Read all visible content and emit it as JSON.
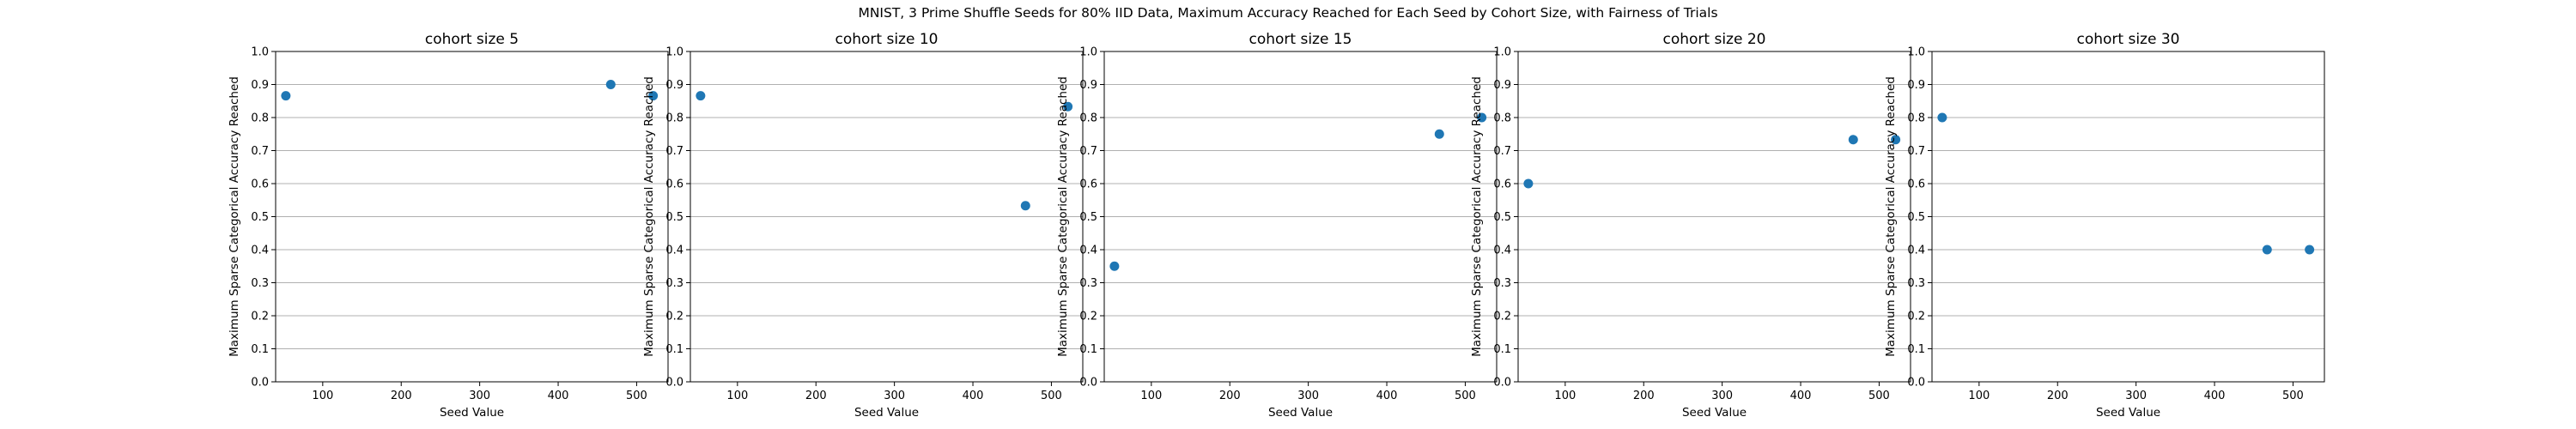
{
  "figure": {
    "title": "MNIST, 3 Prime Shuffle Seeds for 80% IID Data, Maximum Accuracy Reached for Each Seed by Cohort Size, with Fairness of Trials"
  },
  "colors": {
    "marker": "#1f77b4",
    "grid": "#b0b0b0",
    "axis": "#000000"
  },
  "chart_data": [
    {
      "type": "scatter",
      "title": "cohort size 5",
      "xlabel": "Seed Value",
      "ylabel": "Maximum Sparse Categorical Accuracy Reached",
      "x": [
        53,
        467,
        521
      ],
      "y": [
        0.866,
        0.9,
        0.866
      ],
      "xlim": [
        40,
        540
      ],
      "ylim": [
        0.0,
        1.0
      ],
      "xticks": [
        100,
        200,
        300,
        400,
        500
      ],
      "yticks": [
        0.0,
        0.1,
        0.2,
        0.3,
        0.4,
        0.5,
        0.6,
        0.7,
        0.8,
        0.9,
        1.0
      ],
      "grid": "y"
    },
    {
      "type": "scatter",
      "title": "cohort size 10",
      "xlabel": "Seed Value",
      "ylabel": "Maximum Sparse Categorical Accuracy Reached",
      "x": [
        53,
        467,
        521
      ],
      "y": [
        0.866,
        0.533,
        0.833
      ],
      "xlim": [
        40,
        540
      ],
      "ylim": [
        0.0,
        1.0
      ],
      "xticks": [
        100,
        200,
        300,
        400,
        500
      ],
      "yticks": [
        0.0,
        0.1,
        0.2,
        0.3,
        0.4,
        0.5,
        0.6,
        0.7,
        0.8,
        0.9,
        1.0
      ],
      "grid": "y"
    },
    {
      "type": "scatter",
      "title": "cohort size 15",
      "xlabel": "Seed Value",
      "ylabel": "Maximum Sparse Categorical Accuracy Reached",
      "x": [
        53,
        467,
        521
      ],
      "y": [
        0.35,
        0.75,
        0.8
      ],
      "xlim": [
        40,
        540
      ],
      "ylim": [
        0.0,
        1.0
      ],
      "xticks": [
        100,
        200,
        300,
        400,
        500
      ],
      "yticks": [
        0.0,
        0.1,
        0.2,
        0.3,
        0.4,
        0.5,
        0.6,
        0.7,
        0.8,
        0.9,
        1.0
      ],
      "grid": "y"
    },
    {
      "type": "scatter",
      "title": "cohort size 20",
      "xlabel": "Seed Value",
      "ylabel": "Maximum Sparse Categorical Accuracy Reached",
      "x": [
        53,
        467,
        521
      ],
      "y": [
        0.6,
        0.733,
        0.733
      ],
      "xlim": [
        40,
        540
      ],
      "ylim": [
        0.0,
        1.0
      ],
      "xticks": [
        100,
        200,
        300,
        400,
        500
      ],
      "yticks": [
        0.0,
        0.1,
        0.2,
        0.3,
        0.4,
        0.5,
        0.6,
        0.7,
        0.8,
        0.9,
        1.0
      ],
      "grid": "y"
    },
    {
      "type": "scatter",
      "title": "cohort size 30",
      "xlabel": "Seed Value",
      "ylabel": "Maximum Sparse Categorical Accuracy Reached",
      "x": [
        53,
        467,
        521
      ],
      "y": [
        0.8,
        0.4,
        0.4
      ],
      "xlim": [
        40,
        540
      ],
      "ylim": [
        0.0,
        1.0
      ],
      "xticks": [
        100,
        200,
        300,
        400,
        500
      ],
      "yticks": [
        0.0,
        0.1,
        0.2,
        0.3,
        0.4,
        0.5,
        0.6,
        0.7,
        0.8,
        0.9,
        1.0
      ],
      "grid": "y"
    }
  ]
}
